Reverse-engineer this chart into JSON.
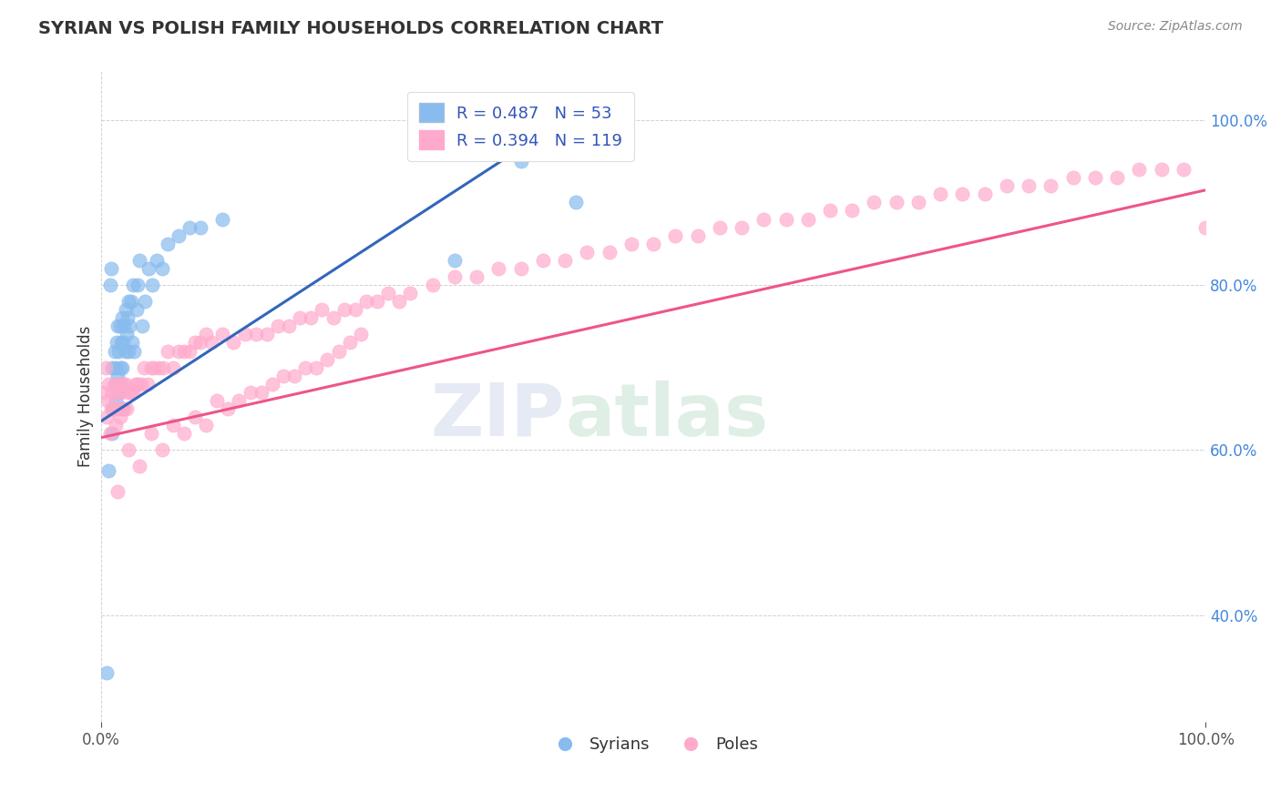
{
  "title": "SYRIAN VS POLISH FAMILY HOUSEHOLDS CORRELATION CHART",
  "source_text": "Source: ZipAtlas.com",
  "ylabel": "Family Households",
  "xlim": [
    0.0,
    1.0
  ],
  "ylim": [
    0.27,
    1.06
  ],
  "blue_color": "#88BBEE",
  "pink_color": "#FFAACC",
  "blue_line_color": "#3366BB",
  "pink_line_color": "#EE5588",
  "legend_blue_label": "R = 0.487   N = 53",
  "legend_pink_label": "R = 0.394   N = 119",
  "syrians_label": "Syrians",
  "poles_label": "Poles",
  "watermark_zip": "ZIP",
  "watermark_atlas": "atlas",
  "blue_scatter_x": [
    0.005,
    0.007,
    0.008,
    0.009,
    0.01,
    0.01,
    0.011,
    0.012,
    0.012,
    0.013,
    0.013,
    0.014,
    0.015,
    0.015,
    0.016,
    0.016,
    0.017,
    0.017,
    0.018,
    0.018,
    0.019,
    0.019,
    0.02,
    0.02,
    0.021,
    0.022,
    0.022,
    0.023,
    0.024,
    0.025,
    0.025,
    0.026,
    0.027,
    0.028,
    0.029,
    0.03,
    0.032,
    0.033,
    0.035,
    0.037,
    0.04,
    0.043,
    0.046,
    0.05,
    0.055,
    0.06,
    0.07,
    0.08,
    0.09,
    0.11,
    0.32,
    0.38,
    0.43
  ],
  "blue_scatter_y": [
    0.33,
    0.575,
    0.8,
    0.82,
    0.62,
    0.7,
    0.65,
    0.68,
    0.72,
    0.66,
    0.7,
    0.73,
    0.69,
    0.75,
    0.67,
    0.72,
    0.7,
    0.75,
    0.68,
    0.73,
    0.7,
    0.76,
    0.65,
    0.73,
    0.75,
    0.72,
    0.77,
    0.74,
    0.76,
    0.72,
    0.78,
    0.75,
    0.78,
    0.73,
    0.8,
    0.72,
    0.77,
    0.8,
    0.83,
    0.75,
    0.78,
    0.82,
    0.8,
    0.83,
    0.82,
    0.85,
    0.86,
    0.87,
    0.87,
    0.88,
    0.83,
    0.95,
    0.9
  ],
  "pink_scatter_x": [
    0.002,
    0.004,
    0.005,
    0.006,
    0.007,
    0.008,
    0.009,
    0.01,
    0.011,
    0.012,
    0.013,
    0.014,
    0.015,
    0.016,
    0.017,
    0.018,
    0.019,
    0.02,
    0.021,
    0.022,
    0.023,
    0.025,
    0.027,
    0.029,
    0.031,
    0.033,
    0.036,
    0.039,
    0.042,
    0.045,
    0.048,
    0.052,
    0.056,
    0.06,
    0.065,
    0.07,
    0.075,
    0.08,
    0.085,
    0.09,
    0.095,
    0.1,
    0.11,
    0.12,
    0.13,
    0.14,
    0.15,
    0.16,
    0.17,
    0.18,
    0.19,
    0.2,
    0.21,
    0.22,
    0.23,
    0.24,
    0.25,
    0.26,
    0.27,
    0.28,
    0.3,
    0.32,
    0.34,
    0.36,
    0.38,
    0.4,
    0.42,
    0.44,
    0.46,
    0.48,
    0.5,
    0.52,
    0.54,
    0.56,
    0.58,
    0.6,
    0.62,
    0.64,
    0.66,
    0.68,
    0.7,
    0.72,
    0.74,
    0.76,
    0.78,
    0.8,
    0.82,
    0.84,
    0.86,
    0.88,
    0.9,
    0.92,
    0.94,
    0.96,
    0.98,
    1.0,
    0.015,
    0.025,
    0.035,
    0.045,
    0.055,
    0.065,
    0.075,
    0.085,
    0.095,
    0.105,
    0.115,
    0.125,
    0.135,
    0.145,
    0.155,
    0.165,
    0.175,
    0.185,
    0.195,
    0.205,
    0.215,
    0.225,
    0.235
  ],
  "pink_scatter_y": [
    0.67,
    0.7,
    0.64,
    0.66,
    0.68,
    0.62,
    0.65,
    0.67,
    0.65,
    0.68,
    0.63,
    0.67,
    0.65,
    0.68,
    0.64,
    0.67,
    0.65,
    0.68,
    0.65,
    0.68,
    0.65,
    0.67,
    0.67,
    0.67,
    0.68,
    0.68,
    0.68,
    0.7,
    0.68,
    0.7,
    0.7,
    0.7,
    0.7,
    0.72,
    0.7,
    0.72,
    0.72,
    0.72,
    0.73,
    0.73,
    0.74,
    0.73,
    0.74,
    0.73,
    0.74,
    0.74,
    0.74,
    0.75,
    0.75,
    0.76,
    0.76,
    0.77,
    0.76,
    0.77,
    0.77,
    0.78,
    0.78,
    0.79,
    0.78,
    0.79,
    0.8,
    0.81,
    0.81,
    0.82,
    0.82,
    0.83,
    0.83,
    0.84,
    0.84,
    0.85,
    0.85,
    0.86,
    0.86,
    0.87,
    0.87,
    0.88,
    0.88,
    0.88,
    0.89,
    0.89,
    0.9,
    0.9,
    0.9,
    0.91,
    0.91,
    0.91,
    0.92,
    0.92,
    0.92,
    0.93,
    0.93,
    0.93,
    0.94,
    0.94,
    0.94,
    0.87,
    0.55,
    0.6,
    0.58,
    0.62,
    0.6,
    0.63,
    0.62,
    0.64,
    0.63,
    0.66,
    0.65,
    0.66,
    0.67,
    0.67,
    0.68,
    0.69,
    0.69,
    0.7,
    0.7,
    0.71,
    0.72,
    0.73,
    0.74
  ],
  "blue_line_x": [
    0.0,
    0.42
  ],
  "blue_line_y_intercept": 0.635,
  "blue_line_slope": 0.87,
  "pink_line_x": [
    0.0,
    1.0
  ],
  "pink_line_y_intercept": 0.615,
  "pink_line_slope": 0.3
}
